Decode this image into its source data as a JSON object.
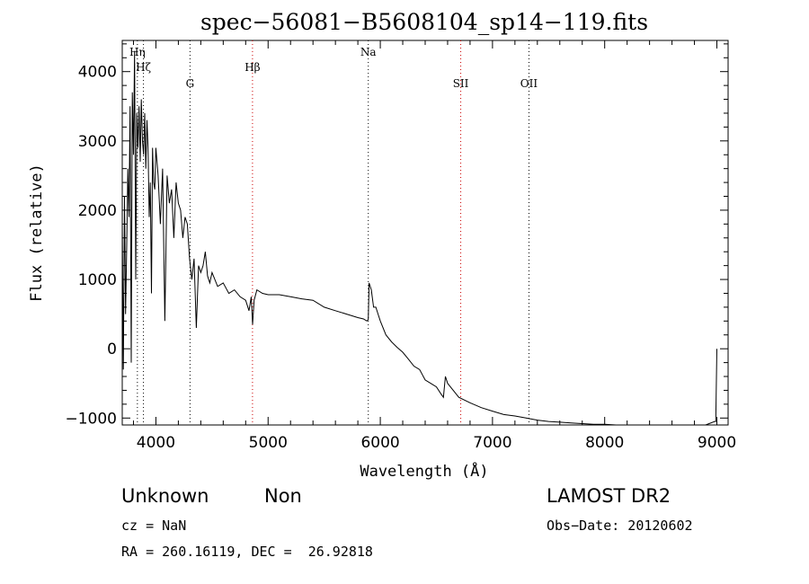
{
  "chart_data": {
    "type": "line",
    "title": "spec−56081−B5608104_sp14−119.fits",
    "xlabel": "Wavelength (Å)",
    "ylabel": "Flux (relative)",
    "xlim": [
      3700,
      9100
    ],
    "ylim": [
      -1100,
      4450
    ],
    "xticks": [
      4000,
      5000,
      6000,
      7000,
      8000,
      9000
    ],
    "yticks": [
      -1000,
      0,
      1000,
      2000,
      3000,
      4000
    ],
    "ytick_labels": [
      "−1000",
      "0",
      "1000",
      "2000",
      "3000",
      "4000"
    ],
    "grid": false,
    "series": [
      {
        "x": [
          3700,
          3710,
          3720,
          3730,
          3740,
          3750,
          3760,
          3770,
          3780,
          3790,
          3800,
          3810,
          3820,
          3830,
          3840,
          3850,
          3860,
          3870,
          3880,
          3890,
          3900,
          3910,
          3920,
          3930,
          3940,
          3950,
          3960,
          3970,
          3980,
          3990,
          4000,
          4020,
          4040,
          4060,
          4080,
          4100,
          4120,
          4140,
          4160,
          4180,
          4200,
          4220,
          4240,
          4260,
          4280,
          4300,
          4320,
          4340,
          4360,
          4380,
          4400,
          4420,
          4440,
          4460,
          4480,
          4500,
          4550,
          4600,
          4650,
          4700,
          4750,
          4800,
          4830,
          4850,
          4862,
          4875,
          4900,
          4950,
          5000,
          5100,
          5200,
          5300,
          5400,
          5500,
          5600,
          5700,
          5800,
          5850,
          5880,
          5893,
          5900,
          5920,
          5940,
          5960,
          5980,
          6000,
          6050,
          6100,
          6150,
          6200,
          6250,
          6300,
          6350,
          6400,
          6450,
          6500,
          6540,
          6563,
          6580,
          6600,
          6650,
          6700,
          6800,
          6900,
          7000,
          7100,
          7200,
          7300,
          7400,
          7500,
          7600,
          7700,
          7800,
          7900,
          8000,
          8100,
          8200,
          8300,
          8400,
          8500,
          8600,
          8700,
          8800,
          8900,
          8980,
          8990,
          9000
        ],
        "y": [
          1800,
          -300,
          2200,
          500,
          1500,
          2600,
          1900,
          3500,
          -200,
          3700,
          2800,
          4300,
          1000,
          3400,
          2900,
          3500,
          2700,
          3600,
          3000,
          2800,
          3400,
          2600,
          3300,
          2900,
          1900,
          2400,
          800,
          2900,
          2400,
          2300,
          2900,
          2500,
          1800,
          2600,
          400,
          2500,
          2100,
          2300,
          1600,
          2400,
          2100,
          2000,
          1600,
          1900,
          1800,
          1300,
          1000,
          1300,
          300,
          1200,
          1100,
          1200,
          1400,
          1050,
          950,
          1100,
          900,
          950,
          800,
          850,
          750,
          700,
          550,
          750,
          350,
          700,
          850,
          800,
          780,
          780,
          750,
          720,
          700,
          600,
          550,
          500,
          450,
          430,
          400,
          420,
          950,
          850,
          600,
          600,
          500,
          400,
          200,
          100,
          20,
          -50,
          -150,
          -250,
          -300,
          -450,
          -500,
          -550,
          -650,
          -700,
          -400,
          -500,
          -600,
          -700,
          -780,
          -850,
          -900,
          -950,
          -970,
          -1000,
          -1030,
          -1050,
          -1060,
          -1070,
          -1080,
          -1090,
          -1090,
          -1100,
          -1100,
          -1100,
          -1100,
          -1100,
          -1100,
          -1100,
          -1100,
          -1100,
          -1050,
          -1050,
          0
        ]
      }
    ],
    "lines": [
      {
        "label": "Hη",
        "x": 3835,
        "color": "#000000",
        "level": 0
      },
      {
        "label": "Hζ",
        "x": 3889,
        "color": "#000000",
        "level": 1
      },
      {
        "label": "G",
        "x": 4304,
        "color": "#000000",
        "level": 2
      },
      {
        "label": "Hβ",
        "x": 4861,
        "color": "#cc0000",
        "level": 1
      },
      {
        "label": "Na",
        "x": 5893,
        "color": "#000000",
        "level": 0
      },
      {
        "label": "SII",
        "x": 6717,
        "color": "#cc0000",
        "level": 2
      },
      {
        "label": "OII",
        "x": 7325,
        "color": "#000000",
        "level": 2
      }
    ]
  },
  "info": {
    "class": "Unknown",
    "subclass": "Non",
    "survey": "LAMOST DR2",
    "cz": "cz = NaN",
    "obs_date": "Obs−Date: 20120602",
    "radec": "RA = 260.16119, DEC =  26.92818"
  }
}
